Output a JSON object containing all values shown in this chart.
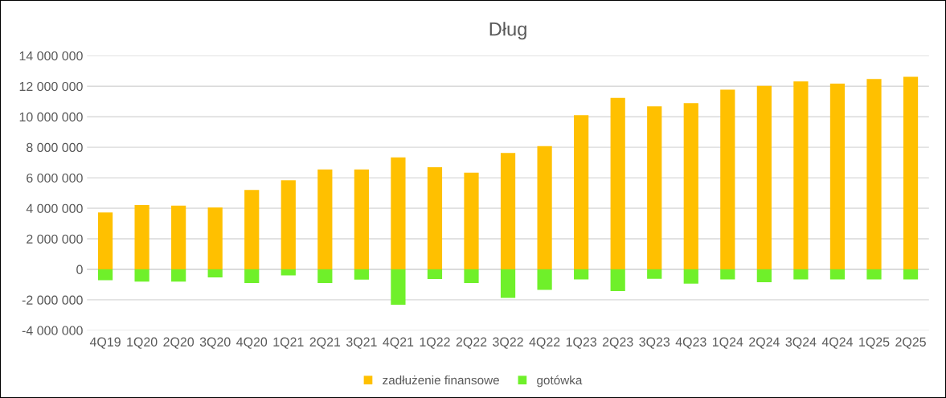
{
  "chart_data": {
    "type": "bar",
    "title": "Dług",
    "stacked": true,
    "categories": [
      "4Q19",
      "1Q20",
      "2Q20",
      "3Q20",
      "4Q20",
      "1Q21",
      "2Q21",
      "3Q21",
      "4Q21",
      "1Q22",
      "2Q22",
      "3Q22",
      "4Q22",
      "1Q23",
      "2Q23",
      "3Q23",
      "4Q23",
      "1Q24",
      "2Q24",
      "3Q24",
      "4Q24",
      "1Q25",
      "2Q25"
    ],
    "series": [
      {
        "name": "zadłużenie finansowe",
        "color": "#ffc000",
        "values": [
          3720000,
          4220000,
          4180000,
          4060000,
          5200000,
          5840000,
          6540000,
          6540000,
          7330000,
          6690000,
          6330000,
          7630000,
          8070000,
          10100000,
          11230000,
          10680000,
          10890000,
          11780000,
          12020000,
          12320000,
          12170000,
          12470000,
          12620000
        ]
      },
      {
        "name": "gotówka",
        "color": "#6ff02a",
        "values": [
          -720000,
          -800000,
          -800000,
          -530000,
          -900000,
          -400000,
          -900000,
          -680000,
          -2320000,
          -640000,
          -900000,
          -1880000,
          -1350000,
          -660000,
          -1420000,
          -620000,
          -940000,
          -660000,
          -850000,
          -660000,
          -660000,
          -660000,
          -660000
        ]
      }
    ],
    "ylim": [
      -4000000,
      14000000
    ],
    "yticks": [
      {
        "value": -4000000,
        "label": "-4 000 000"
      },
      {
        "value": -2000000,
        "label": "-2 000 000"
      },
      0,
      {
        "value": 2000000,
        "label": "2 000 000"
      },
      {
        "value": 4000000,
        "label": "4 000 000"
      },
      {
        "value": 6000000,
        "label": "6 000 000"
      },
      {
        "value": 8000000,
        "label": "8 000 000"
      },
      {
        "value": 10000000,
        "label": "10 000 000"
      },
      {
        "value": 12000000,
        "label": "12 000 000"
      },
      {
        "value": 14000000,
        "label": "14 000 000"
      }
    ],
    "grid": "y",
    "legend": "bottom"
  }
}
